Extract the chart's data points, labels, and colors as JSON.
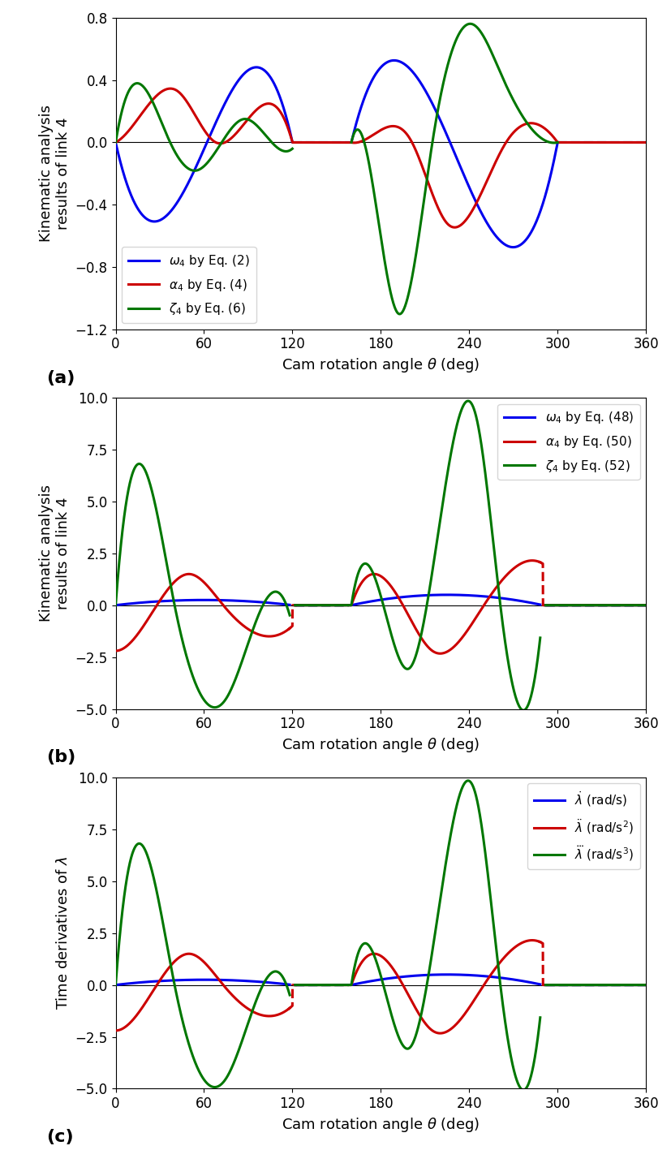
{
  "fig_width": 8.27,
  "fig_height": 14.33,
  "dpi": 100,
  "bg_color": "#ffffff",
  "blue_color": "#0000EE",
  "red_color": "#CC0000",
  "green_color": "#007700",
  "lw": 2.2,
  "fontsize_label": 13,
  "fontsize_tick": 12,
  "fontsize_legend": 11,
  "fontsize_tag": 16,
  "subplot_a": {
    "ylabel": "Kinematic analysis\nresults of link 4",
    "xlabel": "Cam rotation angle $\\theta$ (deg)",
    "ylim": [
      -1.2,
      0.8
    ],
    "yticks": [
      -1.2,
      -0.8,
      -0.4,
      0.0,
      0.4,
      0.8
    ],
    "xlim": [
      0,
      360
    ],
    "xticks": [
      0,
      60,
      120,
      180,
      240,
      300,
      360
    ],
    "tag": "(a)",
    "legend_labels": [
      "$\\omega_4$ by Eq. (2)",
      "$\\alpha_4$ by Eq. (4)",
      "$\\zeta_4$ by Eq. (6)"
    ],
    "legend_loc": "lower left"
  },
  "subplot_b": {
    "ylabel": "Kinematic analysis\nresults of link 4",
    "xlabel": "Cam rotation angle $\\theta$ (deg)",
    "ylim": [
      -5,
      10
    ],
    "yticks": [
      -5.0,
      -2.5,
      0.0,
      2.5,
      5.0,
      7.5,
      10.0
    ],
    "xlim": [
      0,
      360
    ],
    "xticks": [
      0,
      60,
      120,
      180,
      240,
      300,
      360
    ],
    "tag": "(b)",
    "legend_labels": [
      "$\\omega_4$ by Eq. (48)",
      "$\\alpha_4$ by Eq. (50)",
      "$\\zeta_4$ by Eq. (52)"
    ],
    "legend_loc": "upper right"
  },
  "subplot_c": {
    "ylabel": "Time derivatives of $\\lambda$",
    "xlabel": "Cam rotation angle $\\theta$ (deg)",
    "ylim": [
      -5,
      10
    ],
    "yticks": [
      -5.0,
      -2.5,
      0.0,
      2.5,
      5.0,
      7.5,
      10.0
    ],
    "xlim": [
      0,
      360
    ],
    "xticks": [
      0,
      60,
      120,
      180,
      240,
      300,
      360
    ],
    "tag": "(c)",
    "legend_labels": [
      "$\\dot{\\lambda}$ (rad/s)",
      "$\\ddot{\\lambda}$ (rad/s$^2$)",
      "$\\dddot{\\lambda}$ (rad/s$^3$)"
    ],
    "legend_loc": "upper right"
  }
}
